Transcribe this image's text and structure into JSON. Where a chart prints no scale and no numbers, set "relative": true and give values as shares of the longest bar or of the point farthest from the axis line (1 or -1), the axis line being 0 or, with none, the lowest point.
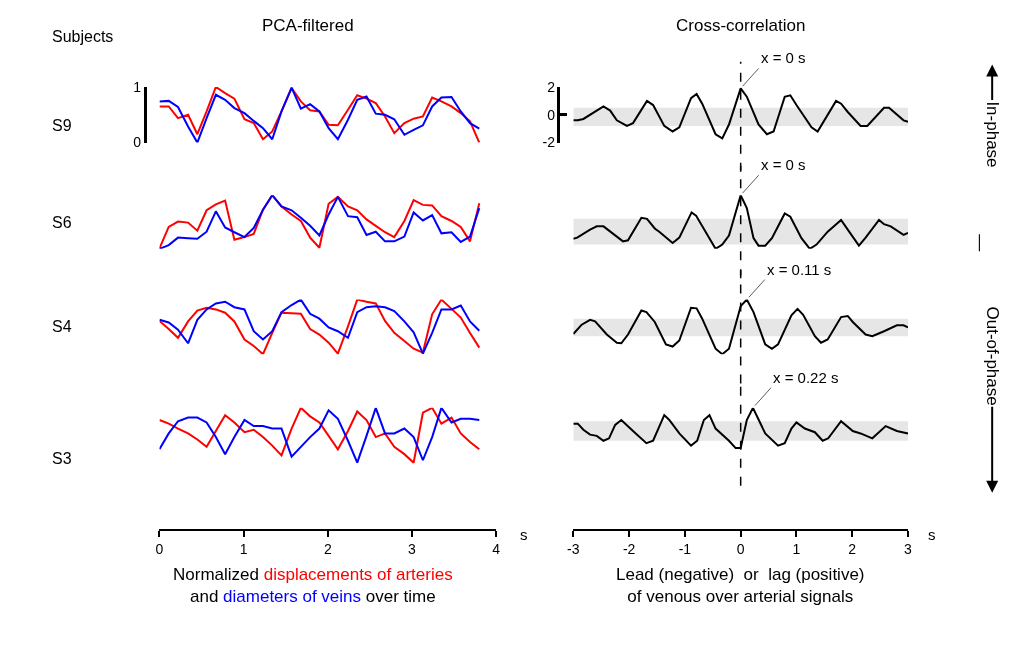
{
  "chart_data": [
    {
      "type": "line",
      "title": "PCA-filtered",
      "ylabel": "S9",
      "annotations": [
        "Subjects"
      ],
      "x": [
        0,
        0.11,
        0.22,
        0.34,
        0.45,
        0.56,
        0.67,
        0.78,
        0.89,
        1.01,
        1.12,
        1.23,
        1.34,
        1.45,
        1.57,
        1.68,
        1.79,
        1.9,
        2.01,
        2.12,
        2.24,
        2.35,
        2.46,
        2.57,
        2.68,
        2.79,
        2.91,
        3.02,
        3.13,
        3.24,
        3.35,
        3.47,
        3.58,
        3.69,
        3.8
      ],
      "xlim": [
        0,
        4
      ],
      "ylim": [
        0,
        1
      ],
      "yticks": [
        0,
        1
      ],
      "tick_labels": "y",
      "series": [
        {
          "color": "#ff0000",
          "values": [
            0.65,
            0.65,
            0.44,
            0.5,
            0.15,
            0.56,
            1.0,
            0.89,
            0.79,
            0.42,
            0.35,
            0.06,
            0.2,
            0.56,
            0.98,
            0.74,
            0.58,
            0.56,
            0.32,
            0.31,
            0.59,
            0.85,
            0.79,
            0.71,
            0.47,
            0.17,
            0.35,
            0.43,
            0.47,
            0.81,
            0.74,
            0.65,
            0.53,
            0.38,
            0
          ]
        },
        {
          "color": "#0000ff",
          "values": [
            0.74,
            0.75,
            0.64,
            0.29,
            0,
            0.44,
            0.86,
            0.77,
            0.62,
            0.53,
            0.39,
            0.26,
            0.06,
            0.56,
            0.99,
            0.61,
            0.69,
            0.56,
            0.26,
            0.06,
            0.41,
            0.77,
            0.83,
            0.52,
            0.5,
            0.42,
            0.14,
            0.23,
            0.31,
            0.65,
            0.81,
            0.82,
            0.56,
            0.35,
            0.25
          ]
        }
      ]
    },
    {
      "type": "line",
      "title": "Cross-correlation",
      "annotations": [
        "In-phase",
        "—",
        "Out-of-phase",
        {
          "text": "x = 0 s",
          "x": 0,
          "y": 1.9
        }
      ],
      "x": [
        -3,
        -2.92,
        -2.82,
        -2.46,
        -2.34,
        -2.22,
        -2.04,
        -1.93,
        -1.68,
        -1.57,
        -1.37,
        -1.22,
        -1.1,
        -0.89,
        -0.79,
        -0.69,
        -0.45,
        -0.33,
        -0.21,
        0,
        0.11,
        0.32,
        0.47,
        0.59,
        0.79,
        0.89,
        1,
        1.27,
        1.38,
        1.71,
        1.8,
        1.92,
        2.15,
        2.27,
        2.57,
        2.66,
        2.92,
        3
      ],
      "xlim": [
        -3,
        3
      ],
      "ylim": [
        -2,
        2
      ],
      "yticks": [
        -2,
        0,
        2
      ],
      "tick_labels": "y",
      "ref_lines": [
        {
          "axis": "x",
          "value": 0,
          "line_style": "dashed",
          "color": "#000000"
        }
      ],
      "series": [
        {
          "color": "#000000",
          "values": [
            -0.4,
            -0.4,
            -0.3,
            0.6,
            0.3,
            -0.4,
            -0.8,
            -0.6,
            1.0,
            0.7,
            -0.8,
            -1.2,
            -0.9,
            1.2,
            1.5,
            0.8,
            -1.4,
            -1.7,
            -0.7,
            1.9,
            1.3,
            -0.7,
            -1.4,
            -1.2,
            1.3,
            1.4,
            0.7,
            -0.9,
            -1.2,
            1.0,
            0.8,
            0.2,
            -0.8,
            -0.8,
            0.5,
            0.5,
            -0.4,
            -0.5
          ],
          "lower": [
            -0.8,
            -0.8,
            -0.8,
            -0.8,
            -0.8,
            -0.8,
            -0.8,
            -0.8,
            -0.8,
            -0.8,
            -0.8,
            -0.8,
            -0.8,
            -0.8,
            -0.8,
            -0.8,
            -0.8,
            -0.8,
            -0.8,
            -0.8,
            -0.8,
            -0.8,
            -0.8,
            -0.8,
            -0.8,
            -0.8,
            -0.8,
            -0.8,
            -0.8,
            -0.8,
            -0.8,
            -0.8,
            -0.8,
            -0.8,
            -0.8,
            -0.8,
            -0.8,
            -0.8
          ],
          "upper": [
            0.5,
            0.5,
            0.5,
            0.5,
            0.5,
            0.5,
            0.5,
            0.5,
            0.5,
            0.5,
            0.5,
            0.5,
            0.5,
            0.5,
            0.5,
            0.5,
            0.5,
            0.5,
            0.5,
            0.5,
            0.5,
            0.5,
            0.5,
            0.5,
            0.5,
            0.5,
            0.5,
            0.5,
            0.5,
            0.5,
            0.5,
            0.5,
            0.5,
            0.5,
            0.5,
            0.5,
            0.5,
            0.5
          ]
        }
      ]
    },
    {
      "type": "line",
      "ylabel": "S6",
      "relative": true,
      "x": [
        0,
        0.11,
        0.22,
        0.34,
        0.45,
        0.56,
        0.67,
        0.78,
        0.89,
        1.01,
        1.12,
        1.23,
        1.34,
        1.45,
        1.57,
        1.68,
        1.79,
        1.9,
        2.01,
        2.12,
        2.24,
        2.35,
        2.46,
        2.57,
        2.68,
        2.79,
        2.91,
        3.02,
        3.13,
        3.24,
        3.35,
        3.47,
        3.58,
        3.69,
        3.8
      ],
      "xlim": [
        0,
        4
      ],
      "tick_labels": false,
      "series": [
        {
          "color": "#ff0000",
          "values": [
            0.01,
            0.41,
            0.51,
            0.49,
            0.34,
            0.72,
            0.83,
            0.9,
            0.17,
            0.22,
            0.28,
            0.73,
            1.0,
            0.79,
            0.64,
            0.52,
            0.21,
            0.02,
            0.84,
            0.97,
            0.79,
            0.72,
            0.55,
            0.43,
            0.31,
            0.22,
            0.52,
            0.91,
            0.82,
            0.81,
            0.61,
            0.52,
            0.41,
            0.14,
            0.85
          ]
        },
        {
          "color": "#0000ff",
          "values": [
            0,
            0.07,
            0.21,
            0.2,
            0.19,
            0.32,
            0.7,
            0.4,
            0.31,
            0.22,
            0.39,
            0.73,
            1.0,
            0.79,
            0.72,
            0.58,
            0.43,
            0.25,
            0.64,
            0.97,
            0.61,
            0.59,
            0.26,
            0.32,
            0.14,
            0.14,
            0.23,
            0.68,
            0.53,
            0.63,
            0.29,
            0.31,
            0.13,
            0.23,
            0.76
          ]
        }
      ]
    },
    {
      "type": "line",
      "relative": true,
      "annotations": [
        {
          "text": "x = 0 s",
          "x": 0,
          "y": 1
        }
      ],
      "x": [
        -3,
        -2.93,
        -2.7,
        -2.58,
        -2.46,
        -2.11,
        -2.02,
        -1.78,
        -1.68,
        -1.54,
        -1.46,
        -1.22,
        -1.1,
        -0.88,
        -0.8,
        -0.45,
        -0.33,
        -0.21,
        0,
        0.11,
        0.23,
        0.32,
        0.44,
        0.56,
        0.79,
        0.89,
        1.09,
        1.24,
        1.36,
        1.56,
        1.8,
        1.92,
        2.12,
        2.24,
        2.48,
        2.57,
        2.69,
        2.92,
        3
      ],
      "xlim": [
        -3,
        3
      ],
      "tick_labels": false,
      "ref_lines": [
        {
          "axis": "x",
          "value": 0,
          "line_style": "dashed",
          "color": "#000000"
        }
      ],
      "series": [
        {
          "color": "#000000",
          "values": [
            0.19,
            0.21,
            0.36,
            0.42,
            0.42,
            0.14,
            0.16,
            0.58,
            0.56,
            0.38,
            0.32,
            0.11,
            0.21,
            0.68,
            0.62,
            0,
            0.08,
            0.25,
            1,
            0.76,
            0.2,
            0.06,
            0.06,
            0.2,
            0.66,
            0.6,
            0.2,
            0,
            0.08,
            0.32,
            0.54,
            0.36,
            0.06,
            0.21,
            0.54,
            0.46,
            0.42,
            0.26,
            0.3
          ],
          "lower": [
            0.08,
            0.08,
            0.08,
            0.08,
            0.08,
            0.08,
            0.08,
            0.08,
            0.08,
            0.08,
            0.08,
            0.08,
            0.08,
            0.08,
            0.08,
            0.08,
            0.08,
            0.08,
            0.08,
            0.08,
            0.08,
            0.08,
            0.08,
            0.08,
            0.08,
            0.08,
            0.08,
            0.08,
            0.08,
            0.08,
            0.08,
            0.08,
            0.08,
            0.08,
            0.08,
            0.08,
            0.08,
            0.08,
            0.08
          ],
          "upper": [
            0.56,
            0.56,
            0.56,
            0.56,
            0.56,
            0.56,
            0.56,
            0.56,
            0.56,
            0.56,
            0.56,
            0.56,
            0.56,
            0.56,
            0.56,
            0.56,
            0.56,
            0.56,
            0.56,
            0.56,
            0.56,
            0.56,
            0.56,
            0.56,
            0.56,
            0.56,
            0.56,
            0.56,
            0.56,
            0.56,
            0.56,
            0.56,
            0.56,
            0.56,
            0.56,
            0.56,
            0.56,
            0.56,
            0.56
          ]
        }
      ]
    },
    {
      "type": "line",
      "ylabel": "S4",
      "relative": true,
      "x": [
        0,
        0.11,
        0.22,
        0.34,
        0.45,
        0.56,
        0.67,
        0.78,
        0.89,
        1.01,
        1.12,
        1.23,
        1.34,
        1.45,
        1.57,
        1.68,
        1.79,
        1.9,
        2.01,
        2.12,
        2.24,
        2.35,
        2.46,
        2.57,
        2.68,
        2.79,
        2.91,
        3.02,
        3.13,
        3.24,
        3.35,
        3.47,
        3.58,
        3.69,
        3.8
      ],
      "xlim": [
        0,
        4
      ],
      "tick_labels": false,
      "series": [
        {
          "color": "#ff0000",
          "values": [
            0.61,
            0.46,
            0.3,
            0.6,
            0.8,
            0.85,
            0.82,
            0.76,
            0.6,
            0.27,
            0.15,
            0,
            0.39,
            0.76,
            0.75,
            0.74,
            0.46,
            0.36,
            0.21,
            0.01,
            0.51,
            1.0,
            0.96,
            0.93,
            0.61,
            0.39,
            0.24,
            0.1,
            0.03,
            0.73,
            1.0,
            0.83,
            0.67,
            0.39,
            0.12
          ]
        },
        {
          "color": "#0000ff",
          "values": [
            0.63,
            0.58,
            0.45,
            0.2,
            0.63,
            0.82,
            0.93,
            0.96,
            0.86,
            0.82,
            0.42,
            0.27,
            0.42,
            0.77,
            0.9,
            1.0,
            0.74,
            0.65,
            0.49,
            0.42,
            0.3,
            0.77,
            0.86,
            0.88,
            0.86,
            0.79,
            0.6,
            0.4,
            0.01,
            0.39,
            0.82,
            0.82,
            0.89,
            0.6,
            0.43
          ]
        }
      ]
    },
    {
      "type": "line",
      "relative": true,
      "annotations": [
        {
          "text": "x = 0.11 s",
          "x": 0.11,
          "y": 1
        }
      ],
      "x": [
        -3,
        -2.85,
        -2.7,
        -2.61,
        -2.4,
        -2.22,
        -2.14,
        -2.02,
        -1.78,
        -1.69,
        -1.54,
        -1.34,
        -1.22,
        -1.1,
        -0.89,
        -0.79,
        -0.69,
        -0.45,
        -0.33,
        -0.21,
        0,
        0.11,
        0.23,
        0.44,
        0.56,
        0.67,
        0.91,
        1.02,
        1.12,
        1.33,
        1.44,
        1.56,
        1.8,
        1.92,
        2.01,
        2.24,
        2.36,
        2.57,
        2.8,
        2.92,
        3
      ],
      "xlim": [
        -3,
        3
      ],
      "tick_labels": false,
      "ref_lines": [
        {
          "axis": "x",
          "value": 0,
          "line_style": "dashed",
          "color": "#000000"
        }
      ],
      "series": [
        {
          "color": "#000000",
          "values": [
            0.37,
            0.54,
            0.63,
            0.6,
            0.36,
            0.21,
            0.2,
            0.36,
            0.8,
            0.77,
            0.59,
            0.18,
            0.14,
            0.25,
            0.85,
            0.84,
            0.65,
            0.1,
            0,
            0.1,
            0.88,
            1,
            0.77,
            0.18,
            0.1,
            0.18,
            0.71,
            0.83,
            0.72,
            0.33,
            0.21,
            0.27,
            0.68,
            0.7,
            0.59,
            0.36,
            0.33,
            0.42,
            0.53,
            0.53,
            0.49
          ],
          "lower": [
            0.33,
            0.33,
            0.33,
            0.33,
            0.33,
            0.33,
            0.33,
            0.33,
            0.33,
            0.33,
            0.33,
            0.33,
            0.33,
            0.33,
            0.33,
            0.33,
            0.33,
            0.33,
            0.33,
            0.33,
            0.33,
            0.33,
            0.33,
            0.33,
            0.33,
            0.33,
            0.33,
            0.33,
            0.33,
            0.33,
            0.33,
            0.33,
            0.33,
            0.33,
            0.33,
            0.33,
            0.33,
            0.33,
            0.33,
            0.33,
            0.33
          ],
          "upper": [
            0.65,
            0.65,
            0.65,
            0.65,
            0.65,
            0.65,
            0.65,
            0.65,
            0.65,
            0.65,
            0.65,
            0.65,
            0.65,
            0.65,
            0.65,
            0.65,
            0.65,
            0.65,
            0.65,
            0.65,
            0.65,
            0.65,
            0.65,
            0.65,
            0.65,
            0.65,
            0.65,
            0.65,
            0.65,
            0.65,
            0.65,
            0.65,
            0.65,
            0.65,
            0.65,
            0.65,
            0.65,
            0.65,
            0.65,
            0.65,
            0.65
          ]
        }
      ]
    },
    {
      "type": "line",
      "ylabel": "S3",
      "xlabel": "s",
      "relative": true,
      "annotations": [
        "Normalized",
        "and",
        "over time"
      ],
      "x": [
        0,
        0.11,
        0.22,
        0.34,
        0.45,
        0.56,
        0.67,
        0.78,
        0.89,
        1.01,
        1.12,
        1.23,
        1.34,
        1.45,
        1.57,
        1.68,
        1.79,
        1.9,
        2.01,
        2.12,
        2.24,
        2.35,
        2.46,
        2.57,
        2.68,
        2.79,
        2.91,
        3.02,
        3.13,
        3.24,
        3.35,
        3.47,
        3.58,
        3.69,
        3.8
      ],
      "xlim": [
        0,
        4
      ],
      "xticks": [
        0,
        1,
        2,
        3,
        4
      ],
      "tick_labels": "x",
      "series": [
        {
          "name": "displacements of arteries",
          "color": "#ff0000",
          "values": [
            0.9,
            0.87,
            0.83,
            0.79,
            0.74,
            0.68,
            0.81,
            0.94,
            0.88,
            0.8,
            0.82,
            0.76,
            0.69,
            0.61,
            0.83,
            1.0,
            0.93,
            0.88,
            0.77,
            0.66,
            0.81,
            0.97,
            0.9,
            0.76,
            0.79,
            0.68,
            0.62,
            0.55,
            0.96,
            1.0,
            0.87,
            0.92,
            0.79,
            0.72,
            0.66
          ]
        },
        {
          "name": "diameters of veins",
          "color": "#0000ff",
          "values": [
            0.66,
            0.79,
            0.89,
            0.92,
            0.92,
            0.88,
            0.76,
            0.62,
            0.76,
            0.9,
            0.85,
            0.85,
            0.83,
            0.83,
            0.6,
            0.68,
            0.76,
            0.83,
            0.98,
            0.91,
            0.73,
            0.55,
            0.77,
            1.0,
            0.79,
            0.79,
            0.83,
            0.76,
            0.57,
            0.76,
            1.0,
            0.88,
            0.91,
            0.91,
            0.9
          ]
        }
      ]
    },
    {
      "type": "line",
      "xlabel": "s",
      "relative": true,
      "annotations": [
        "Lead (negative)  or  lag (positive)",
        "of venous over arterial signals",
        {
          "text": "x = 0.22 s",
          "x": 0.22,
          "y": 1
        }
      ],
      "x": [
        -3,
        -2.92,
        -2.82,
        -2.7,
        -2.58,
        -2.46,
        -2.36,
        -2.25,
        -2.14,
        -1.93,
        -1.69,
        -1.57,
        -1.37,
        -1.28,
        -1.1,
        -0.89,
        -0.78,
        -0.66,
        -0.56,
        -0.45,
        -0.21,
        -0.09,
        0,
        0.11,
        0.22,
        0.44,
        0.67,
        0.79,
        0.91,
        1,
        1.15,
        1.33,
        1.47,
        1.57,
        1.8,
        2.01,
        2.15,
        2.36,
        2.6,
        2.8,
        3
      ],
      "xlim": [
        -3,
        3
      ],
      "xticks": [
        -3,
        -2,
        -1,
        0,
        1,
        2,
        3
      ],
      "tick_labels": "x",
      "ref_lines": [
        {
          "axis": "x",
          "value": 0,
          "line_style": "dashed",
          "color": "#000000"
        }
      ],
      "series": [
        {
          "color": "#000000",
          "values": [
            0.87,
            0.87,
            0.82,
            0.78,
            0.77,
            0.73,
            0.75,
            0.86,
            0.9,
            0.81,
            0.71,
            0.73,
            0.94,
            0.9,
            0.79,
            0.69,
            0.73,
            0.9,
            0.94,
            0.83,
            0.73,
            0.67,
            0.67,
            0.9,
            1,
            0.79,
            0.69,
            0.71,
            0.83,
            0.88,
            0.83,
            0.8,
            0.73,
            0.75,
            0.89,
            0.81,
            0.79,
            0.75,
            0.85,
            0.81,
            0.79
          ],
          "lower": [
            0.73,
            0.73,
            0.73,
            0.73,
            0.73,
            0.73,
            0.73,
            0.73,
            0.73,
            0.73,
            0.73,
            0.73,
            0.73,
            0.73,
            0.73,
            0.73,
            0.73,
            0.73,
            0.73,
            0.73,
            0.73,
            0.73,
            0.73,
            0.73,
            0.73,
            0.73,
            0.73,
            0.73,
            0.73,
            0.73,
            0.73,
            0.73,
            0.73,
            0.73,
            0.73,
            0.73,
            0.73,
            0.73,
            0.73,
            0.73,
            0.73
          ],
          "upper": [
            0.89,
            0.89,
            0.89,
            0.89,
            0.89,
            0.89,
            0.89,
            0.89,
            0.89,
            0.89,
            0.89,
            0.89,
            0.89,
            0.89,
            0.89,
            0.89,
            0.89,
            0.89,
            0.89,
            0.89,
            0.89,
            0.89,
            0.89,
            0.89,
            0.89,
            0.89,
            0.89,
            0.89,
            0.89,
            0.89,
            0.89,
            0.89,
            0.89,
            0.89,
            0.89,
            0.89,
            0.89,
            0.89,
            0.89,
            0.89,
            0.89
          ]
        }
      ]
    }
  ]
}
